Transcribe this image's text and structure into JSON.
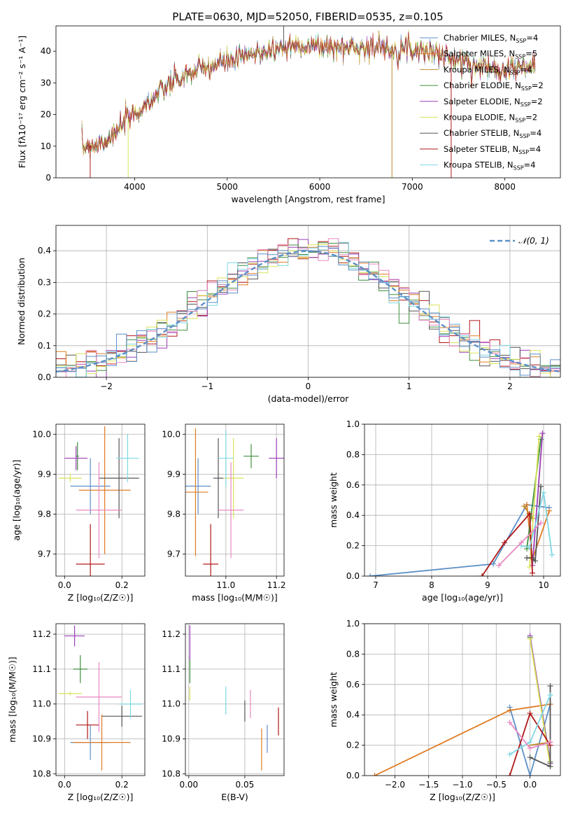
{
  "figure_title": "PLATE=0630, MJD=52050, FIBERID=0535, z=0.105",
  "colors": {
    "grid": "#b0b0b0",
    "runs": [
      "#5b8fc7",
      "#e07b22",
      "#c08a2a",
      "#3f8f3f",
      "#9b3fb5",
      "#d9e25a",
      "#555555",
      "#b01818",
      "#7fd8e4",
      "#e888c0"
    ]
  },
  "chart_data": [
    {
      "id": "spectrum",
      "type": "line",
      "title": "PLATE=0630, MJD=52050, FIBERID=0535, z=0.105",
      "xlabel": "wavelength [Angstrom, rest frame]",
      "ylabel": "Flux [fλ10⁻¹⁷ erg cm⁻² s⁻¹ A⁻¹]",
      "xlim": [
        3150,
        8600
      ],
      "ylim": [
        0,
        48
      ],
      "xticks": [
        4000,
        5000,
        6000,
        7000,
        8000
      ],
      "yticks": [
        0,
        10,
        20,
        30,
        40
      ],
      "grid": false,
      "legend_position": "top-right",
      "continuum": [
        [
          3430,
          10
        ],
        [
          3600,
          10.5
        ],
        [
          3800,
          14
        ],
        [
          3900,
          18
        ],
        [
          4000,
          20
        ],
        [
          4200,
          25
        ],
        [
          4400,
          30
        ],
        [
          4600,
          33
        ],
        [
          4800,
          35
        ],
        [
          5000,
          37
        ],
        [
          5200,
          38
        ],
        [
          5400,
          40
        ],
        [
          5600,
          41
        ],
        [
          5800,
          42
        ],
        [
          6000,
          41.5
        ],
        [
          6200,
          41
        ],
        [
          6400,
          41.5
        ],
        [
          6600,
          41
        ],
        [
          6800,
          41
        ],
        [
          7000,
          41
        ],
        [
          7200,
          40
        ],
        [
          7400,
          38
        ],
        [
          7600,
          36
        ],
        [
          7800,
          35
        ],
        [
          8000,
          34.5
        ],
        [
          8200,
          35
        ],
        [
          8330,
          35
        ]
      ],
      "spikes": [
        [
          6780,
          0
        ],
        [
          7420,
          0
        ],
        [
          3930,
          0
        ],
        [
          3520,
          0
        ],
        [
          5610,
          48
        ]
      ],
      "legend": [
        {
          "label": "Chabrier MILES, N",
          "sub": "SSP",
          "tail": "=4"
        },
        {
          "label": "Salpeter MILES, N",
          "sub": "SSP",
          "tail": "=5"
        },
        {
          "label": "Kroupa MILES, N",
          "sub": "SSP",
          "tail": "=4"
        },
        {
          "label": "Chabrier ELODIE, N",
          "sub": "SSP",
          "tail": "=2"
        },
        {
          "label": "Salpeter ELODIE, N",
          "sub": "SSP",
          "tail": "=2"
        },
        {
          "label": "Kroupa ELODIE, N",
          "sub": "SSP",
          "tail": "=2"
        },
        {
          "label": "Chabrier STELIB, N",
          "sub": "SSP",
          "tail": "=4"
        },
        {
          "label": "Salpeter STELIB, N",
          "sub": "SSP",
          "tail": "=4"
        },
        {
          "label": "Kroupa STELIB, N",
          "sub": "SSP",
          "tail": "=4"
        }
      ]
    },
    {
      "id": "residuals",
      "type": "line",
      "xlabel": "(data-model)/error",
      "ylabel": "Normed distribution",
      "xlim": [
        -2.5,
        2.5
      ],
      "ylim": [
        0,
        0.48
      ],
      "xticks": [
        -2,
        -1,
        0,
        1,
        2
      ],
      "yticks": [
        0.0,
        0.1,
        0.2,
        0.3,
        0.4
      ],
      "grid": true,
      "legend": "𝒩(0, 1)",
      "legend_position": "top-right",
      "bin_width": 0.1
    },
    {
      "id": "age-vs-Z",
      "type": "scatter",
      "xlabel": "Z [log₁₀(Z/Z☉)]",
      "ylabel": "age  [log₁₀(age/yr)]",
      "xlim": [
        -0.03,
        0.28
      ],
      "ylim": [
        9.645,
        10.025
      ],
      "xticks": [
        0.0,
        0.2
      ],
      "yticks": [
        9.7,
        9.8,
        9.9,
        10.0
      ],
      "grid": true,
      "points": [
        {
          "x": 0.09,
          "y": 9.87,
          "xerr": 0.07,
          "yerr": 0.07
        },
        {
          "x": 0.14,
          "y": 9.86,
          "xerr": 0.09,
          "yerr": 0.16
        },
        {
          "x": 0.045,
          "y": 9.945,
          "xerr": 0.005,
          "yerr": 0.035
        },
        {
          "x": 0.04,
          "y": 9.94,
          "xerr": 0.04,
          "yerr": 0.03
        },
        {
          "x": 0.02,
          "y": 9.89,
          "xerr": 0.04,
          "yerr": 0.01
        },
        {
          "x": 0.19,
          "y": 9.89,
          "xerr": 0.07,
          "yerr": 0.1
        },
        {
          "x": 0.09,
          "y": 9.675,
          "xerr": 0.05,
          "yerr": 0.1
        },
        {
          "x": 0.22,
          "y": 9.94,
          "xerr": 0.04,
          "yerr": 0.06
        },
        {
          "x": 0.12,
          "y": 9.81,
          "xerr": 0.08,
          "yerr": 0.12
        }
      ]
    },
    {
      "id": "age-vs-mass",
      "type": "scatter",
      "xlabel": "mass [log₁₀(M/M☉)]",
      "ylabel": "",
      "xlim": [
        10.84,
        11.23
      ],
      "ylim": [
        9.645,
        10.025
      ],
      "xticks": [
        10.8,
        11.0,
        11.2
      ],
      "yticks": [
        9.7,
        9.8,
        9.9,
        10.0
      ],
      "grid": true,
      "points": [
        {
          "x": 10.89,
          "y": 9.87,
          "xerr": 0.05,
          "yerr": 0.07
        },
        {
          "x": 10.88,
          "y": 9.855,
          "xerr": 0.05,
          "yerr": 0.16
        },
        {
          "x": 11.1,
          "y": 9.945,
          "xerr": 0.03,
          "yerr": 0.03
        },
        {
          "x": 11.2,
          "y": 9.94,
          "xerr": 0.03,
          "yerr": 0.05
        },
        {
          "x": 11.03,
          "y": 9.89,
          "xerr": 0.04,
          "yerr": 0.1
        },
        {
          "x": 10.97,
          "y": 9.89,
          "xerr": 0.02,
          "yerr": 0.1
        },
        {
          "x": 10.94,
          "y": 9.675,
          "xerr": 0.03,
          "yerr": 0.1
        },
        {
          "x": 11.0,
          "y": 9.94,
          "xerr": 0.03,
          "yerr": 0.07
        },
        {
          "x": 11.02,
          "y": 9.81,
          "xerr": 0.05,
          "yerr": 0.12
        }
      ]
    },
    {
      "id": "weight-vs-age",
      "type": "line",
      "xlabel": "age  [log₁₀(age/yr)]",
      "ylabel": "mass weight",
      "xlim": [
        6.8,
        10.3
      ],
      "ylim": [
        0,
        1
      ],
      "xticks": [
        7,
        8,
        9,
        10
      ],
      "yticks": [
        0.0,
        0.2,
        0.4,
        0.6,
        0.8,
        1.0
      ],
      "grid": true,
      "series": [
        {
          "values": [
            [
              6.9,
              0
            ],
            [
              9.1,
              0.08
            ],
            [
              9.7,
              0.47
            ],
            [
              10.1,
              0.45
            ]
          ]
        },
        {
          "values": [
            [
              9.7,
              0.47
            ],
            [
              9.8,
              0.11
            ],
            [
              10.1,
              0.43
            ]
          ]
        },
        {
          "values": [
            [
              9.65,
              0.46
            ],
            [
              9.8,
              0.38
            ]
          ]
        },
        {
          "values": [
            [
              9.7,
              0.18
            ],
            [
              9.95,
              0.9
            ]
          ]
        },
        {
          "values": [
            [
              9.8,
              0.07
            ],
            [
              9.98,
              0.94
            ]
          ]
        },
        {
          "values": [
            [
              9.75,
              0.06
            ],
            [
              9.92,
              0.92
            ]
          ]
        },
        {
          "values": [
            [
              9.7,
              0.12
            ],
            [
              9.8,
              0.12
            ],
            [
              9.85,
              0.1
            ],
            [
              9.95,
              0.59
            ]
          ]
        },
        {
          "values": [
            [
              8.9,
              0
            ],
            [
              9.3,
              0.22
            ],
            [
              9.75,
              0.41
            ],
            [
              9.8,
              0.02
            ]
          ]
        },
        {
          "values": [
            [
              9.6,
              0.2
            ],
            [
              9.75,
              0.19
            ],
            [
              10.0,
              0.55
            ],
            [
              10.15,
              0.14
            ]
          ]
        },
        {
          "values": [
            [
              9.2,
              0.07
            ],
            [
              9.6,
              0.22
            ],
            [
              9.95,
              0.35
            ]
          ]
        }
      ]
    },
    {
      "id": "mass-vs-Z",
      "type": "scatter",
      "xlabel": "Z [log₁₀(Z/Z☉)]",
      "ylabel": "mass [log₁₀(M/M☉)]",
      "xlim": [
        -0.03,
        0.28
      ],
      "ylim": [
        10.795,
        11.23
      ],
      "xticks": [
        0.0,
        0.2
      ],
      "yticks": [
        10.8,
        10.9,
        11.0,
        11.1,
        11.2
      ],
      "grid": true,
      "points": [
        {
          "x": 0.09,
          "y": 10.89,
          "xerr": 0.07,
          "yerr": 0.05
        },
        {
          "x": 0.13,
          "y": 10.89,
          "xerr": 0.1,
          "yerr": 0.08
        },
        {
          "x": 0.055,
          "y": 11.1,
          "xerr": 0.025,
          "yerr": 0.04
        },
        {
          "x": 0.035,
          "y": 11.195,
          "xerr": 0.035,
          "yerr": 0.03
        },
        {
          "x": 0.02,
          "y": 11.03,
          "xerr": 0.04,
          "yerr": 0.005
        },
        {
          "x": 0.2,
          "y": 10.965,
          "xerr": 0.07,
          "yerr": 0.03
        },
        {
          "x": 0.08,
          "y": 10.94,
          "xerr": 0.04,
          "yerr": 0.04
        },
        {
          "x": 0.23,
          "y": 11.0,
          "xerr": 0.04,
          "yerr": 0.04
        },
        {
          "x": 0.12,
          "y": 11.02,
          "xerr": 0.08,
          "yerr": 0.1
        }
      ]
    },
    {
      "id": "mass-vs-EBV",
      "type": "scatter",
      "xlabel": "E(B-V)",
      "ylabel": "",
      "xlim": [
        -0.003,
        0.085
      ],
      "ylim": [
        10.795,
        11.23
      ],
      "xticks": [
        0.0,
        0.05
      ],
      "yticks": [
        10.8,
        10.9,
        11.0,
        11.1,
        11.2
      ],
      "grid": true,
      "points": [
        {
          "x": 0.07,
          "y": 10.9,
          "xerr": 0,
          "yerr": 0.04
        },
        {
          "x": 0.065,
          "y": 10.87,
          "xerr": 0,
          "yerr": 0.06
        },
        {
          "x": 0.001,
          "y": 11.1,
          "xerr": 0,
          "yerr": 0.04
        },
        {
          "x": 0.001,
          "y": 11.175,
          "xerr": 0,
          "yerr": 0.05
        },
        {
          "x": 0.001,
          "y": 11.03,
          "xerr": 0,
          "yerr": 0.02
        },
        {
          "x": 0.05,
          "y": 10.98,
          "xerr": 0,
          "yerr": 0.03
        },
        {
          "x": 0.08,
          "y": 10.95,
          "xerr": 0,
          "yerr": 0.04
        },
        {
          "x": 0.033,
          "y": 11.01,
          "xerr": 0,
          "yerr": 0.04
        },
        {
          "x": 0.055,
          "y": 11.0,
          "xerr": 0,
          "yerr": 0.04
        }
      ]
    },
    {
      "id": "weight-vs-Z",
      "type": "line",
      "xlabel": "Z [log₁₀(Z/Z☉)]",
      "ylabel": "mass weight",
      "xlim": [
        -2.45,
        0.45
      ],
      "ylim": [
        0,
        1
      ],
      "xticks": [
        -2.0,
        -1.5,
        -1.0,
        -0.5,
        0.0
      ],
      "yticks": [
        0.0,
        0.2,
        0.4,
        0.6,
        0.8,
        1.0
      ],
      "grid": true,
      "series": [
        {
          "values": [
            [
              -0.3,
              0.45
            ],
            [
              0.0,
              0.0
            ],
            [
              0.3,
              0.47
            ]
          ]
        },
        {
          "values": [
            [
              -2.3,
              0
            ],
            [
              -0.3,
              0.43
            ],
            [
              0.3,
              0.47
            ]
          ]
        },
        {
          "values": [
            [
              0,
              0.2
            ],
            [
              0.3,
              0.22
            ]
          ]
        },
        {
          "values": [
            [
              0,
              0.91
            ],
            [
              0.3,
              0.09
            ]
          ]
        },
        {
          "values": [
            [
              0,
              0.92
            ],
            [
              0.3,
              0.08
            ]
          ]
        },
        {
          "values": [
            [
              0,
              0.9
            ],
            [
              0.3,
              0.06
            ]
          ]
        },
        {
          "values": [
            [
              0,
              0.12
            ],
            [
              0.3,
              0.06
            ],
            [
              0.3,
              0.59
            ]
          ]
        },
        {
          "values": [
            [
              -0.3,
              0
            ],
            [
              0,
              0.41
            ],
            [
              0.3,
              0.2
            ]
          ]
        },
        {
          "values": [
            [
              -0.3,
              0.14
            ],
            [
              0,
              0.22
            ],
            [
              0.3,
              0.53
            ]
          ]
        },
        {
          "values": [
            [
              -0.3,
              0.35
            ],
            [
              0,
              0.18
            ],
            [
              0.3,
              0.22
            ]
          ]
        }
      ]
    }
  ]
}
